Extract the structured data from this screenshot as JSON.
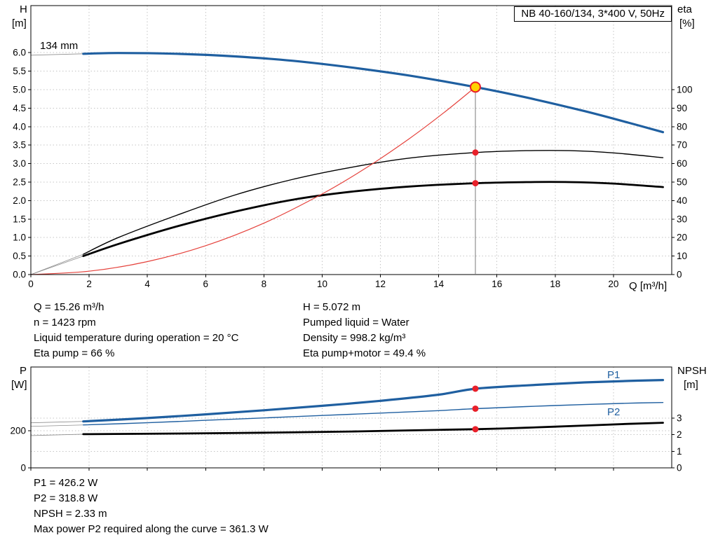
{
  "title_box": "NB 40-160/134, 3*400 V, 50Hz",
  "colors": {
    "curve_blue": "#1f5fa0",
    "curve_black": "#000000",
    "system_red": "#e5423c",
    "marker_red": "#e8202a",
    "duty_fill": "#ffd400",
    "grid": "#c5c5c5"
  },
  "results": {
    "left": [
      "Q = 15.26 m³/h",
      "n = 1423 rpm",
      "Liquid temperature during operation = 20 °C",
      "Eta pump = 66 %"
    ],
    "right": [
      "H = 5.072 m",
      "Pumped liquid = Water",
      "Density = 998.2 kg/m³",
      "Eta pump+motor = 49.4 %"
    ]
  },
  "power_results": [
    "P1 = 426.2 W",
    "P2 = 318.8 W",
    "NPSH = 2.33 m",
    "Max power P2 required along the curve = 361.3 W"
  ],
  "chart_data": [
    {
      "name": "pump-performance-chart",
      "type": "line",
      "title": "NB 40-160/134, 3*400 V, 50Hz",
      "x_axis": {
        "label": "Q [m³/h]",
        "min": 0,
        "max": 22,
        "ticks": [
          0,
          2,
          4,
          6,
          8,
          10,
          12,
          14,
          16,
          18,
          20
        ],
        "show_labels": true
      },
      "y_left": {
        "label": "H",
        "unit": "[m]",
        "min": 0,
        "max": 7.273,
        "ticks": [
          "0.0",
          "0.5",
          "1.0",
          "1.5",
          "2.0",
          "2.5",
          "3.0",
          "3.5",
          "4.0",
          "4.5",
          "5.0",
          "5.5",
          "6.0"
        ]
      },
      "y_right": {
        "label": "eta",
        "unit": "[%]",
        "min": 0,
        "max": 145.45,
        "ticks": [
          0,
          10,
          20,
          30,
          40,
          50,
          60,
          70,
          80,
          90,
          100
        ],
        "grid": false
      },
      "series": [
        {
          "name": "head-curve",
          "label": "134 mm",
          "axis": "left",
          "color": "#1f5fa0",
          "width": 3.2,
          "leader": "axis",
          "points": [
            [
              1.8,
              5.97
            ],
            [
              3,
              5.99
            ],
            [
              5,
              5.97
            ],
            [
              7,
              5.9
            ],
            [
              9,
              5.78
            ],
            [
              11,
              5.6
            ],
            [
              13,
              5.38
            ],
            [
              15.26,
              5.07
            ],
            [
              17,
              4.79
            ],
            [
              19,
              4.42
            ],
            [
              20.5,
              4.11
            ],
            [
              21.7,
              3.85
            ]
          ]
        },
        {
          "name": "eta-pump-curve",
          "label": "Eta pump",
          "axis": "right",
          "color": "#000000",
          "width": 1.4,
          "leader": "origin",
          "points": [
            [
              1.8,
              11
            ],
            [
              3,
              20
            ],
            [
              5,
              32
            ],
            [
              7,
              43
            ],
            [
              9,
              51.5
            ],
            [
              11,
              58
            ],
            [
              13,
              63
            ],
            [
              15.26,
              66
            ],
            [
              17,
              67
            ],
            [
              18.5,
              67
            ],
            [
              20,
              65.8
            ],
            [
              21.7,
              63.2
            ]
          ]
        },
        {
          "name": "eta-pump-motor-curve",
          "label": "Eta pump+motor",
          "axis": "right",
          "color": "#000000",
          "width": 2.8,
          "leader": "origin",
          "points": [
            [
              1.8,
              10
            ],
            [
              3,
              16.5
            ],
            [
              5,
              26
            ],
            [
              7,
              34
            ],
            [
              9,
              40.5
            ],
            [
              11,
              44.8
            ],
            [
              13,
              47.6
            ],
            [
              15.26,
              49.4
            ],
            [
              17,
              50
            ],
            [
              18.5,
              50
            ],
            [
              20,
              49.2
            ],
            [
              21.7,
              47.3
            ]
          ]
        },
        {
          "name": "system-curve",
          "label": "",
          "axis": "left",
          "color": "#e5423c",
          "width": 1.2,
          "leader": null,
          "points": [
            [
              0,
              0
            ],
            [
              2,
              0.09
            ],
            [
              4,
              0.35
            ],
            [
              6,
              0.78
            ],
            [
              8,
              1.39
            ],
            [
              10,
              2.18
            ],
            [
              11.5,
              2.88
            ],
            [
              13,
              3.68
            ],
            [
              14.2,
              4.39
            ],
            [
              15.26,
              5.07
            ]
          ]
        }
      ],
      "marker_line": {
        "q": 15.26,
        "from": 5.07
      },
      "markers": [
        {
          "q": 15.26,
          "axis": "left",
          "v": 5.07,
          "style": "duty"
        },
        {
          "q": 15.26,
          "axis": "right",
          "v": 66,
          "style": "dot"
        },
        {
          "q": 15.26,
          "axis": "right",
          "v": 49.4,
          "style": "dot"
        }
      ],
      "operating_point": {
        "q_m3h": 15.26,
        "h_m": 5.072,
        "eta_pump_pct": 66,
        "eta_pump_motor_pct": 49.4
      }
    },
    {
      "name": "power-npsh-chart",
      "type": "line",
      "x_axis": {
        "label": "",
        "min": 0,
        "max": 22,
        "ticks": [
          0,
          2,
          4,
          6,
          8,
          10,
          12,
          14,
          16,
          18,
          20
        ],
        "show_labels": false
      },
      "y_left": {
        "label": "P",
        "unit": "[W]",
        "min": 0,
        "max": 543,
        "ticks": [
          0,
          200
        ]
      },
      "y_right": {
        "label": "NPSH",
        "unit": "[m]",
        "min": 0,
        "max": 6.08,
        "ticks": [
          0,
          1,
          2,
          3
        ],
        "grid": true
      },
      "series": [
        {
          "name": "p1-curve",
          "label": "P1",
          "axis": "left",
          "color": "#1f5fa0",
          "width": 3.2,
          "leader": "axis",
          "points": [
            [
              1.8,
              250
            ],
            [
              4,
              268
            ],
            [
              6,
              288
            ],
            [
              8,
              310
            ],
            [
              10,
              334
            ],
            [
              12,
              361
            ],
            [
              14,
              394
            ],
            [
              15.26,
              426.2
            ],
            [
              17,
              444
            ],
            [
              19,
              460
            ],
            [
              20.5,
              468
            ],
            [
              21.7,
              473
            ]
          ]
        },
        {
          "name": "p2-curve",
          "label": "P2",
          "axis": "left",
          "color": "#1f5fa0",
          "width": 1.4,
          "leader": "axis",
          "points": [
            [
              1.8,
              231
            ],
            [
              4,
              243
            ],
            [
              6,
              256
            ],
            [
              8,
              269
            ],
            [
              10,
              282
            ],
            [
              12,
              295
            ],
            [
              14,
              308
            ],
            [
              15.26,
              318.8
            ],
            [
              17,
              330
            ],
            [
              19,
              341
            ],
            [
              20.5,
              348
            ],
            [
              21.7,
              352
            ]
          ]
        },
        {
          "name": "npsh-curve",
          "label": "NPSH",
          "axis": "right",
          "color": "#000000",
          "width": 2.8,
          "leader": "axis",
          "points": [
            [
              1.8,
              2.03
            ],
            [
              5,
              2.07
            ],
            [
              8,
              2.12
            ],
            [
              11,
              2.19
            ],
            [
              13,
              2.26
            ],
            [
              15.26,
              2.33
            ],
            [
              17,
              2.42
            ],
            [
              19,
              2.55
            ],
            [
              20.5,
              2.65
            ],
            [
              21.7,
              2.72
            ]
          ]
        }
      ],
      "markers": [
        {
          "q": 15.26,
          "axis": "left",
          "v": 426.2,
          "style": "dot"
        },
        {
          "q": 15.26,
          "axis": "left",
          "v": 318.8,
          "style": "dot"
        },
        {
          "q": 15.26,
          "axis": "right",
          "v": 2.33,
          "style": "dot"
        }
      ],
      "operating_point": {
        "p1_w": 426.2,
        "p2_w": 318.8,
        "npsh_m": 2.33,
        "max_p2_w": 361.3
      }
    }
  ]
}
